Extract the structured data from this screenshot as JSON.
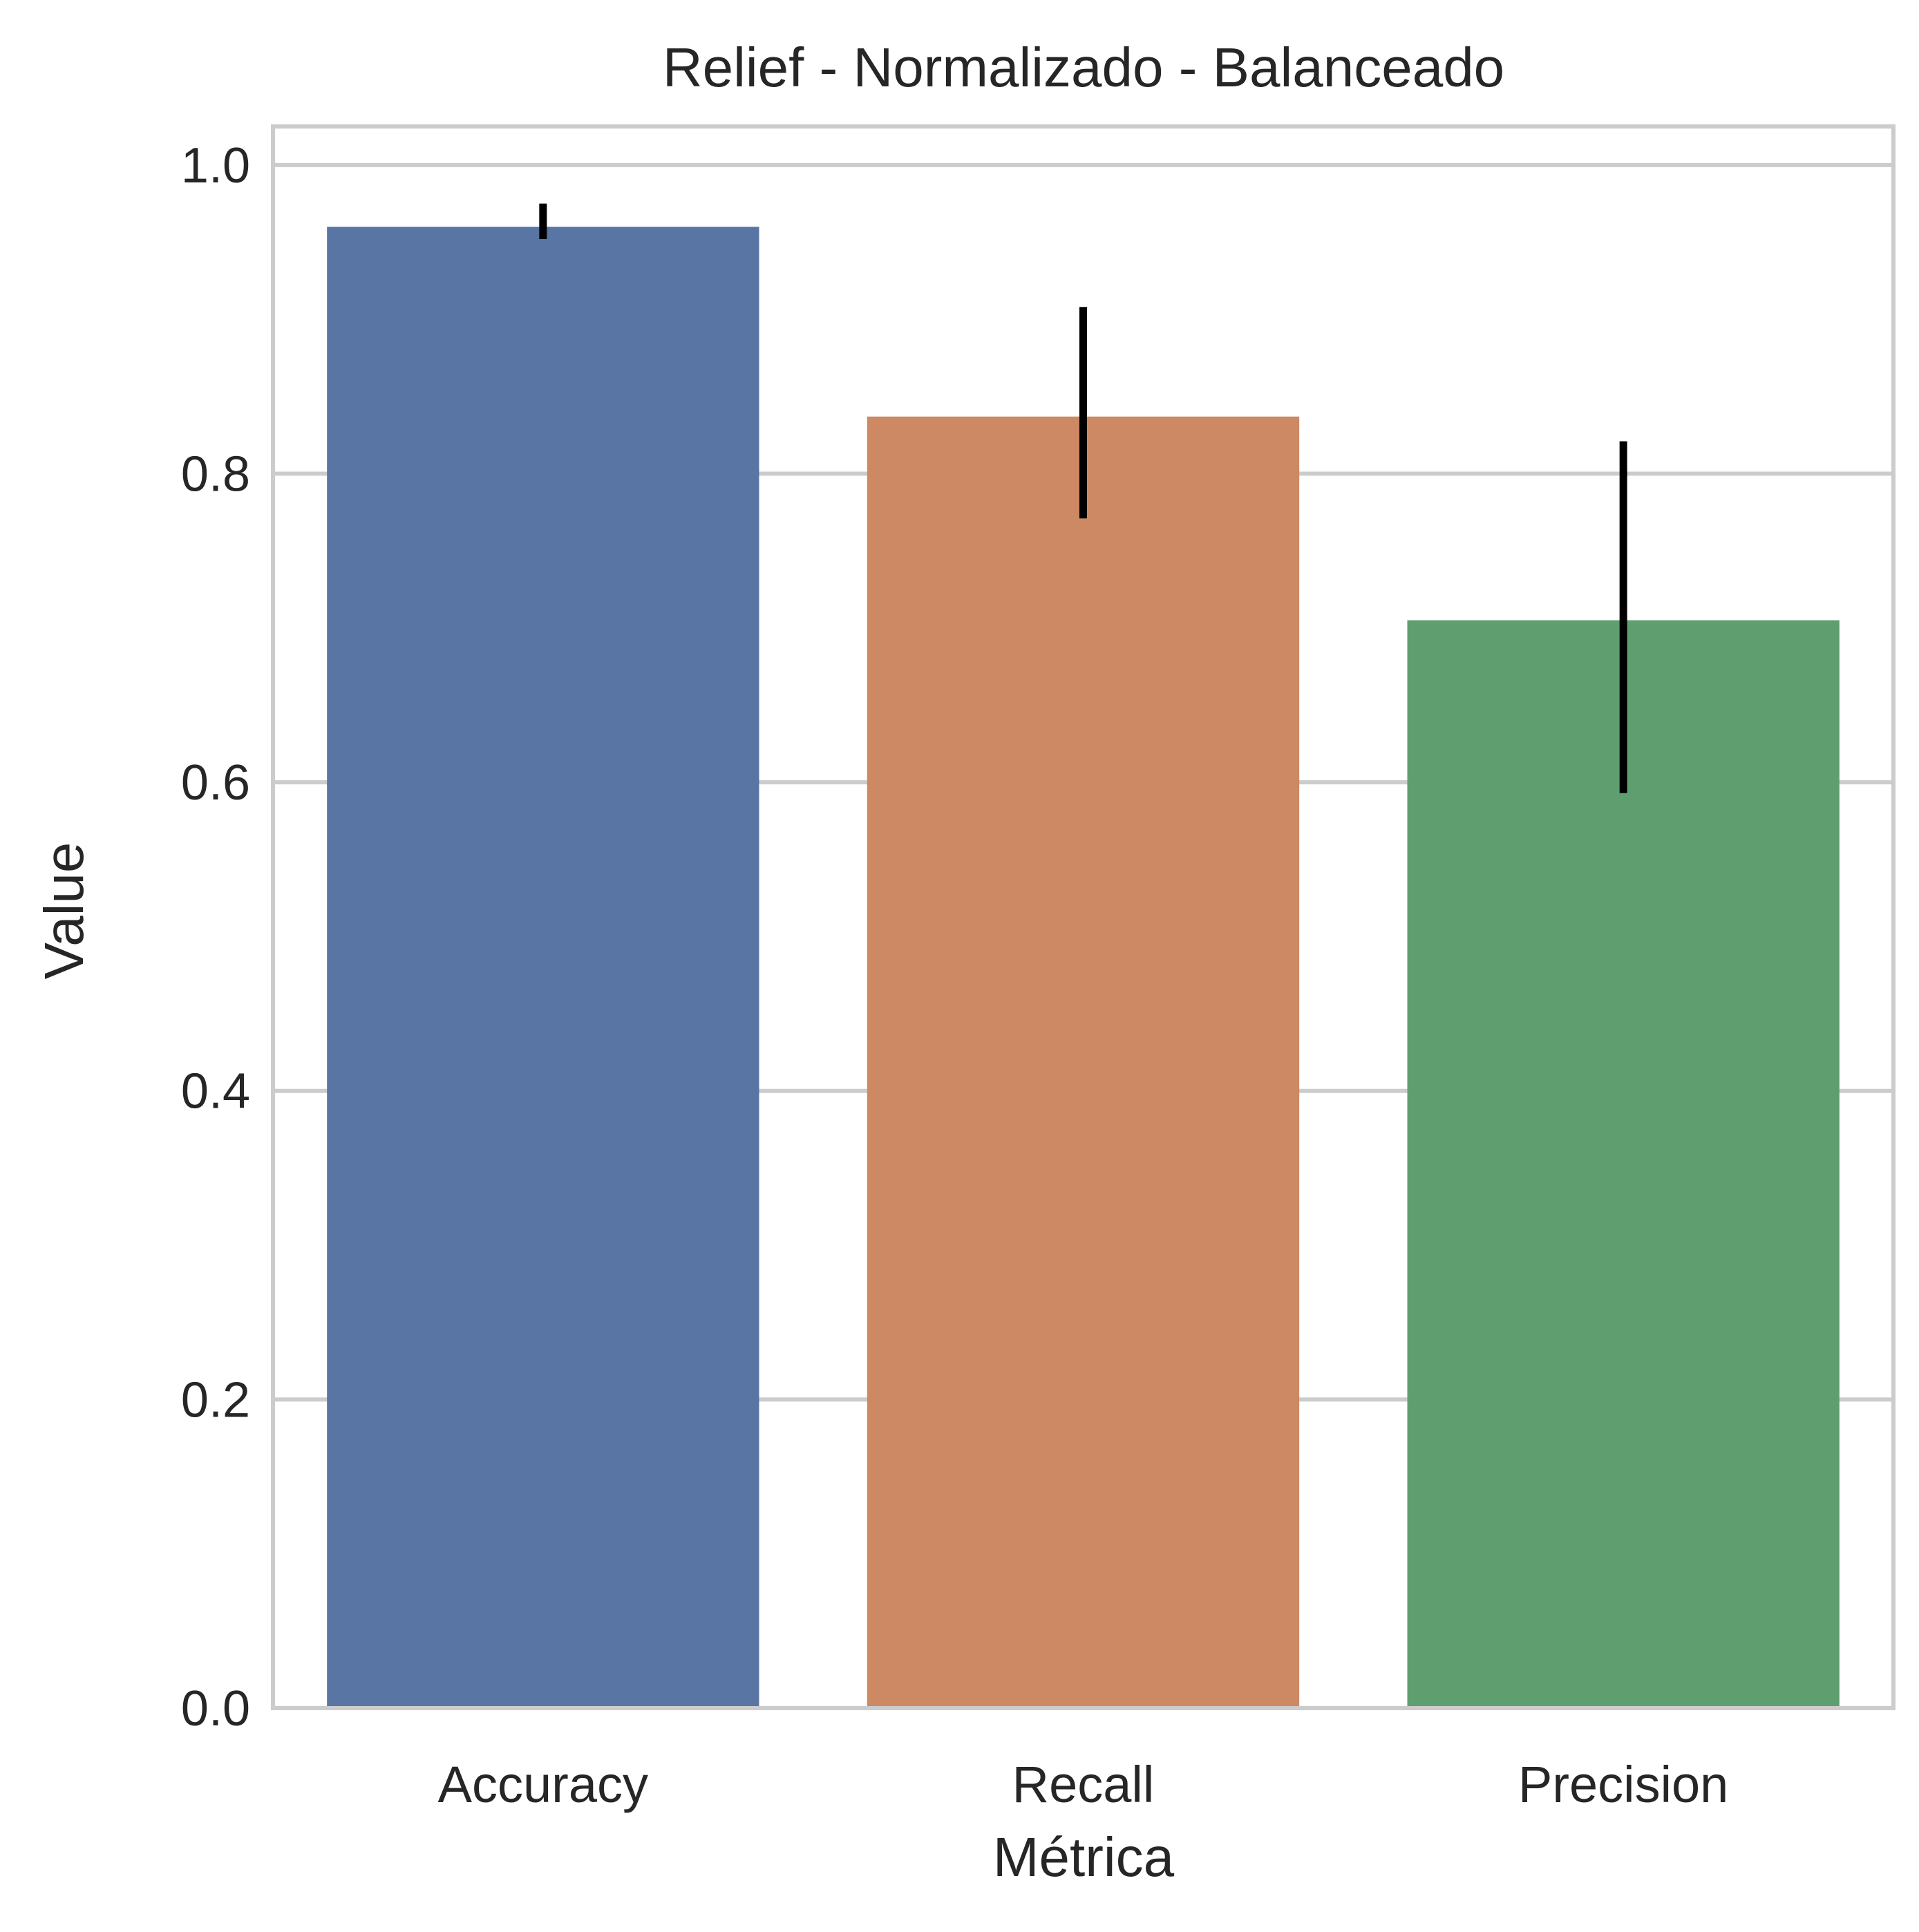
{
  "chart_data": {
    "type": "bar",
    "title": "Relief - Normalizado - Balanceado",
    "xlabel": "Métrica",
    "ylabel": "Value",
    "ylim": [
      0,
      1.025
    ],
    "yticks": [
      "0.0",
      "0.2",
      "0.4",
      "0.6",
      "0.8",
      "1.0"
    ],
    "ytick_values": [
      0.0,
      0.2,
      0.4,
      0.6,
      0.8,
      1.0
    ],
    "grid": true,
    "categories": [
      "Accuracy",
      "Recall",
      "Precision"
    ],
    "values": [
      0.96,
      0.837,
      0.705
    ],
    "error_low": [
      0.952,
      0.771,
      0.593
    ],
    "error_high": [
      0.975,
      0.908,
      0.821
    ],
    "colors": [
      "#5975a4",
      "#cc8963",
      "#5f9e6e"
    ]
  }
}
